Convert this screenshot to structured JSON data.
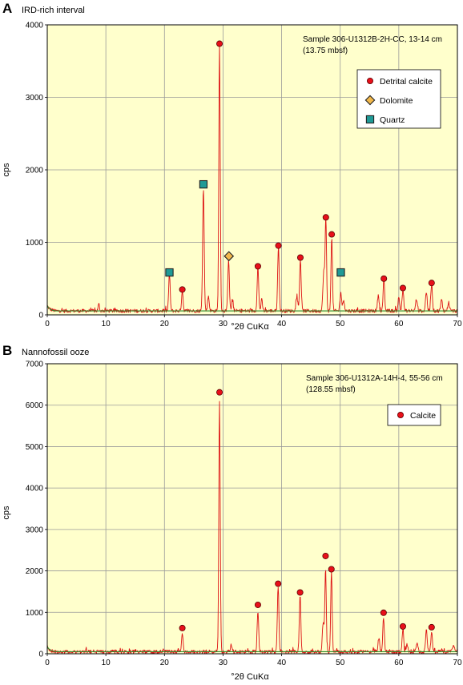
{
  "figure": {
    "panels": [
      "A",
      "B"
    ]
  },
  "chart_data": [
    {
      "type": "line",
      "panel_letter": "A",
      "title": "IRD-rich interval",
      "sample_note": [
        "Sample 306-U1312B-2H-CC, 13-14 cm",
        "(13.75 mbsf)"
      ],
      "xlabel": "°2θ CuKα",
      "ylabel": "cps",
      "xlim": [
        0,
        70
      ],
      "ylim": [
        0,
        4000
      ],
      "xticks": [
        0,
        10,
        20,
        30,
        40,
        50,
        60,
        70
      ],
      "yticks": [
        0,
        1000,
        2000,
        3000,
        4000
      ],
      "grid": true,
      "legend_position": "top-right",
      "colors": {
        "background": "#ffffcc",
        "trace": "#dd1111",
        "baseline": "#2e8b2e",
        "grid": "#9a9a9a"
      },
      "base_level": 55,
      "peaks": [
        {
          "x": 8.8,
          "y": 90,
          "w": 0.12
        },
        {
          "x": 20.85,
          "y": 500,
          "w": 0.13
        },
        {
          "x": 23.05,
          "y": 280,
          "w": 0.13
        },
        {
          "x": 26.65,
          "y": 1700,
          "w": 0.13
        },
        {
          "x": 27.5,
          "y": 200,
          "w": 0.14
        },
        {
          "x": 29.4,
          "y": 3650,
          "w": 0.12
        },
        {
          "x": 30.95,
          "y": 720,
          "w": 0.13
        },
        {
          "x": 31.6,
          "y": 150,
          "w": 0.13
        },
        {
          "x": 35.95,
          "y": 600,
          "w": 0.13
        },
        {
          "x": 36.6,
          "y": 150,
          "w": 0.13
        },
        {
          "x": 39.45,
          "y": 880,
          "w": 0.13
        },
        {
          "x": 42.6,
          "y": 200,
          "w": 0.14
        },
        {
          "x": 43.2,
          "y": 720,
          "w": 0.13
        },
        {
          "x": 47.2,
          "y": 550,
          "w": 0.15
        },
        {
          "x": 47.55,
          "y": 1260,
          "w": 0.12
        },
        {
          "x": 48.55,
          "y": 1030,
          "w": 0.12
        },
        {
          "x": 50.1,
          "y": 250,
          "w": 0.14
        },
        {
          "x": 50.6,
          "y": 150,
          "w": 0.14
        },
        {
          "x": 56.5,
          "y": 220,
          "w": 0.14
        },
        {
          "x": 57.45,
          "y": 420,
          "w": 0.13
        },
        {
          "x": 60.0,
          "y": 180,
          "w": 0.14
        },
        {
          "x": 60.7,
          "y": 300,
          "w": 0.13
        },
        {
          "x": 63.0,
          "y": 160,
          "w": 0.14
        },
        {
          "x": 64.7,
          "y": 260,
          "w": 0.14
        },
        {
          "x": 65.6,
          "y": 380,
          "w": 0.13
        },
        {
          "x": 67.3,
          "y": 150,
          "w": 0.14
        },
        {
          "x": 68.5,
          "y": 120,
          "w": 0.14
        }
      ],
      "markers": [
        {
          "x": 23.05,
          "y": 350,
          "symbol": "circle"
        },
        {
          "x": 29.4,
          "y": 3740,
          "symbol": "circle"
        },
        {
          "x": 35.95,
          "y": 670,
          "symbol": "circle"
        },
        {
          "x": 39.45,
          "y": 955,
          "symbol": "circle"
        },
        {
          "x": 43.2,
          "y": 790,
          "symbol": "circle"
        },
        {
          "x": 47.55,
          "y": 1345,
          "symbol": "circle"
        },
        {
          "x": 48.55,
          "y": 1110,
          "symbol": "circle"
        },
        {
          "x": 57.45,
          "y": 500,
          "symbol": "circle"
        },
        {
          "x": 60.7,
          "y": 370,
          "symbol": "circle"
        },
        {
          "x": 65.6,
          "y": 440,
          "symbol": "circle"
        },
        {
          "x": 31.0,
          "y": 810,
          "symbol": "diamond"
        },
        {
          "x": 20.85,
          "y": 585,
          "symbol": "square"
        },
        {
          "x": 26.65,
          "y": 1800,
          "symbol": "square"
        },
        {
          "x": 50.1,
          "y": 585,
          "symbol": "square"
        }
      ],
      "legend": [
        {
          "label": "Detrital calcite",
          "symbol": "circle"
        },
        {
          "label": "Dolomite",
          "symbol": "diamond"
        },
        {
          "label": "Quartz",
          "symbol": "square"
        }
      ]
    },
    {
      "type": "line",
      "panel_letter": "B",
      "title": "Nannofossil ooze",
      "sample_note": [
        "Sample 306-U1312A-14H-4, 55-56 cm",
        "(128.55 mbsf)"
      ],
      "xlabel": "°2θ CuKα",
      "ylabel": "cps",
      "xlim": [
        0,
        70
      ],
      "ylim": [
        0,
        7000
      ],
      "xticks": [
        0,
        10,
        20,
        30,
        40,
        50,
        60,
        70
      ],
      "yticks": [
        0,
        1000,
        2000,
        3000,
        4000,
        5000,
        6000,
        7000
      ],
      "grid": true,
      "legend_position": "top-right",
      "colors": {
        "background": "#ffffcc",
        "trace": "#dd1111",
        "baseline": "#2e8b2e",
        "grid": "#9a9a9a"
      },
      "base_level": 50,
      "peaks": [
        {
          "x": 23.05,
          "y": 420,
          "w": 0.13
        },
        {
          "x": 29.4,
          "y": 6050,
          "w": 0.12
        },
        {
          "x": 31.4,
          "y": 180,
          "w": 0.13
        },
        {
          "x": 35.95,
          "y": 950,
          "w": 0.13
        },
        {
          "x": 39.4,
          "y": 1550,
          "w": 0.13
        },
        {
          "x": 43.15,
          "y": 1380,
          "w": 0.13
        },
        {
          "x": 47.1,
          "y": 700,
          "w": 0.15
        },
        {
          "x": 47.5,
          "y": 2000,
          "w": 0.12
        },
        {
          "x": 48.5,
          "y": 1950,
          "w": 0.12
        },
        {
          "x": 56.6,
          "y": 330,
          "w": 0.14
        },
        {
          "x": 57.4,
          "y": 820,
          "w": 0.13
        },
        {
          "x": 60.7,
          "y": 550,
          "w": 0.13
        },
        {
          "x": 61.4,
          "y": 180,
          "w": 0.14
        },
        {
          "x": 63.1,
          "y": 220,
          "w": 0.14
        },
        {
          "x": 64.7,
          "y": 520,
          "w": 0.14
        },
        {
          "x": 65.6,
          "y": 470,
          "w": 0.13
        },
        {
          "x": 69.3,
          "y": 130,
          "w": 0.14
        }
      ],
      "markers": [
        {
          "x": 23.05,
          "y": 620,
          "symbol": "circle"
        },
        {
          "x": 29.4,
          "y": 6310,
          "symbol": "circle"
        },
        {
          "x": 35.95,
          "y": 1180,
          "symbol": "circle"
        },
        {
          "x": 39.4,
          "y": 1690,
          "symbol": "circle"
        },
        {
          "x": 43.15,
          "y": 1480,
          "symbol": "circle"
        },
        {
          "x": 47.5,
          "y": 2360,
          "symbol": "circle"
        },
        {
          "x": 48.5,
          "y": 2040,
          "symbol": "circle"
        },
        {
          "x": 57.4,
          "y": 990,
          "symbol": "circle"
        },
        {
          "x": 60.7,
          "y": 660,
          "symbol": "circle"
        },
        {
          "x": 65.6,
          "y": 640,
          "symbol": "circle"
        }
      ],
      "legend": [
        {
          "label": "Calcite",
          "symbol": "circle"
        }
      ]
    }
  ]
}
